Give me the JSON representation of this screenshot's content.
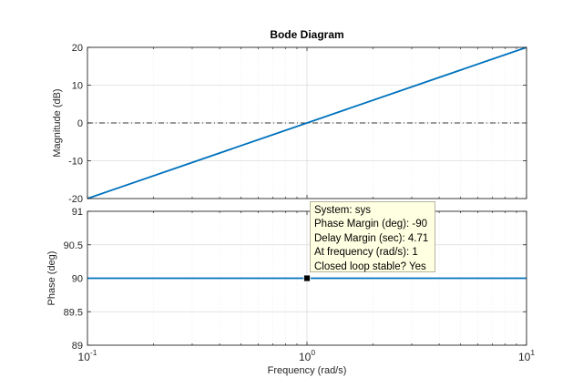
{
  "chart_data": {
    "title": "Bode Diagram",
    "type": "line",
    "xlabel": "Frequency  (rad/s)",
    "x_scale": "log",
    "xlim": [
      0.1,
      10
    ],
    "x_tick_labels": [
      {
        "value": 0.1,
        "base": "10",
        "exponent": "-1"
      },
      {
        "value": 1,
        "base": "10",
        "exponent": "0"
      },
      {
        "value": 10,
        "base": "10",
        "exponent": "1"
      }
    ],
    "grid": true,
    "panels": [
      {
        "name": "magnitude",
        "ylabel": "Magnitude (dB)",
        "ylim": [
          -20,
          20
        ],
        "y_ticks": [
          -20,
          -10,
          0,
          10,
          20
        ],
        "series": [
          {
            "x": [
              0.1,
              1,
              10
            ],
            "y": [
              -20,
              0,
              20
            ],
            "color": "#0072bd"
          }
        ],
        "reference_line": {
          "y": 0,
          "style": "dash-dot"
        }
      },
      {
        "name": "phase",
        "ylabel": "Phase (deg)",
        "ylim": [
          89,
          91
        ],
        "y_ticks": [
          89,
          89.5,
          90,
          90.5,
          91
        ],
        "series": [
          {
            "x": [
              0.1,
              1,
              10
            ],
            "y": [
              90,
              90,
              90
            ],
            "color": "#0072bd"
          }
        ],
        "marker": {
          "x": 1,
          "y": 90
        }
      }
    ],
    "datatip": {
      "lines": [
        "System: sys",
        "Phase Margin (deg): -90",
        "Delay Margin (sec): 4.71",
        "At frequency (rad/s): 1",
        "Closed loop stable? Yes"
      ]
    }
  }
}
